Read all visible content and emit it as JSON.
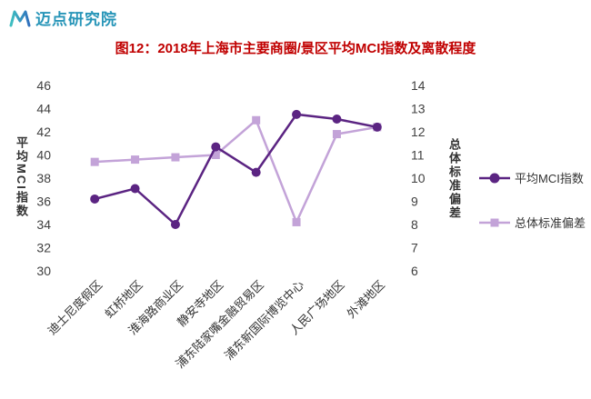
{
  "logo": {
    "text": "迈点研究院",
    "color": "#2795b8",
    "icon_color": "#3fc0c1",
    "icon": "maidian-m-logo"
  },
  "chart_data": {
    "type": "line",
    "title": "图12：2018年上海市主要商圈/景区平均MCI指数及离散程度",
    "title_color": "#c00000",
    "categories": [
      "迪士尼度假区",
      "虹桥地区",
      "淮海路商业区",
      "静安寺地区",
      "浦东陆家嘴金融贸易区",
      "浦东新国际博览中心",
      "人民广场地区",
      "外滩地区"
    ],
    "series": [
      {
        "key": "avg-mci",
        "name": "平均MCI指数",
        "axis": "left",
        "marker": "circle",
        "color": "#5b2482",
        "values": [
          36.2,
          37.1,
          34.0,
          40.7,
          38.5,
          43.5,
          43.1,
          42.4
        ]
      },
      {
        "key": "std-dev",
        "name": "总体标准偏差",
        "axis": "right",
        "marker": "square",
        "color": "#c3a3d8",
        "values": [
          10.7,
          10.8,
          10.9,
          11.0,
          12.5,
          8.1,
          11.9,
          12.2
        ]
      }
    ],
    "ylabel_left": "平均MCI指数",
    "ylabel_right": "总体标准偏差",
    "ylim_left": [
      30,
      46
    ],
    "ytick_step_left": 2,
    "ylim_right": [
      6,
      14
    ],
    "ytick_step_right": 1,
    "grid": false,
    "legend_position": "right"
  }
}
